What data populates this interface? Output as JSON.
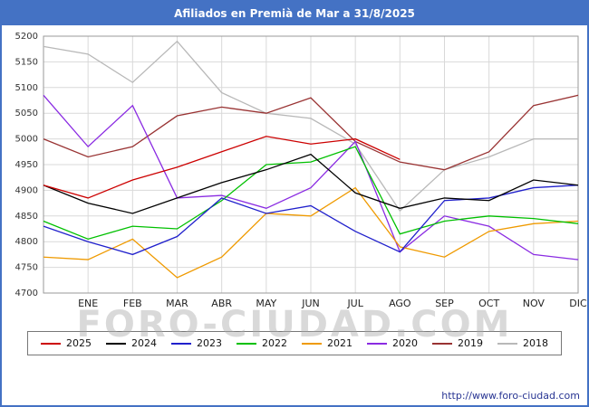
{
  "header": {
    "title": "Afiliados en Premià de Mar a 31/8/2025"
  },
  "watermark": "FORO-CIUDAD.COM",
  "footer": {
    "url": "http://www.foro-ciudad.com"
  },
  "colors": {
    "header_bg": "#4472c4",
    "grid": "#d9d9d9",
    "plot_border": "#999999"
  },
  "chart_data": {
    "type": "line",
    "title": "Afiliados en Premià de Mar a 31/8/2025",
    "xlabel": "",
    "ylabel": "",
    "ylim": [
      4700,
      5200
    ],
    "yticks": [
      4700,
      4750,
      4800,
      4850,
      4900,
      4950,
      5000,
      5050,
      5100,
      5150,
      5200
    ],
    "grid": true,
    "legend_position": "bottom",
    "x_labels": [
      "",
      "ENE",
      "FEB",
      "MAR",
      "ABR",
      "MAY",
      "JUN",
      "JUL",
      "AGO",
      "SEP",
      "OCT",
      "NOV",
      "DIC"
    ],
    "series": [
      {
        "name": "2025",
        "color": "#cc0000",
        "values": [
          4910,
          4885,
          4920,
          4945,
          4975,
          5005,
          4990,
          5000,
          4960
        ]
      },
      {
        "name": "2024",
        "color": "#000000",
        "values": [
          4910,
          4875,
          4855,
          4885,
          4915,
          4940,
          4970,
          4895,
          4865,
          4885,
          4880,
          4920,
          4910
        ]
      },
      {
        "name": "2023",
        "color": "#2020cc",
        "values": [
          4830,
          4800,
          4775,
          4810,
          4885,
          4855,
          4870,
          4820,
          4780,
          4880,
          4885,
          4905,
          4910
        ]
      },
      {
        "name": "2022",
        "color": "#00c000",
        "values": [
          4840,
          4805,
          4830,
          4825,
          4880,
          4950,
          4955,
          4985,
          4815,
          4840,
          4850,
          4845,
          4835
        ]
      },
      {
        "name": "2021",
        "color": "#ef9a00",
        "values": [
          4770,
          4765,
          4805,
          4730,
          4770,
          4855,
          4850,
          4905,
          4790,
          4770,
          4820,
          4835,
          4840
        ]
      },
      {
        "name": "2020",
        "color": "#8a2be2",
        "values": [
          5085,
          4985,
          5065,
          4885,
          4890,
          4865,
          4905,
          4995,
          4780,
          4850,
          4830,
          4775,
          4765
        ]
      },
      {
        "name": "2019",
        "color": "#993333",
        "values": [
          5000,
          4965,
          4985,
          5045,
          5062,
          5050,
          5080,
          4995,
          4955,
          4940,
          4975,
          5065,
          5085
        ]
      },
      {
        "name": "2018",
        "color": "#b8b8b8",
        "values": [
          5180,
          5165,
          5110,
          5190,
          5090,
          5050,
          5040,
          4990,
          4860,
          4940,
          4965,
          5000,
          5000
        ]
      }
    ]
  }
}
